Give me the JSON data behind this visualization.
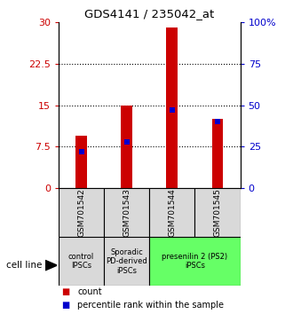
{
  "title": "GDS4141 / 235042_at",
  "samples": [
    "GSM701542",
    "GSM701543",
    "GSM701544",
    "GSM701545"
  ],
  "counts": [
    9.5,
    15.0,
    29.0,
    12.5
  ],
  "percentile_ranks": [
    22.0,
    28.0,
    47.0,
    40.0
  ],
  "count_color": "#cc0000",
  "percentile_color": "#0000cc",
  "ylim_left": [
    0,
    30
  ],
  "ylim_right": [
    0,
    100
  ],
  "yticks_left": [
    0,
    7.5,
    15,
    22.5,
    30
  ],
  "yticks_right": [
    0,
    25,
    50,
    75,
    100
  ],
  "ytick_labels_left": [
    "0",
    "7.5",
    "15",
    "22.5",
    "30"
  ],
  "ytick_labels_right": [
    "0",
    "25",
    "50",
    "75",
    "100%"
  ],
  "group_info": [
    {
      "label": "control\nIPSCs",
      "color": "#d9d9d9",
      "start": 0,
      "end": 0
    },
    {
      "label": "Sporadic\nPD-derived\niPSCs",
      "color": "#d9d9d9",
      "start": 1,
      "end": 1
    },
    {
      "label": "presenilin 2 (PS2)\niPSCs",
      "color": "#66ff66",
      "start": 2,
      "end": 3
    }
  ],
  "cell_line_label": "cell line",
  "legend_count": "count",
  "legend_percentile": "percentile rank within the sample",
  "bar_width": 0.25
}
